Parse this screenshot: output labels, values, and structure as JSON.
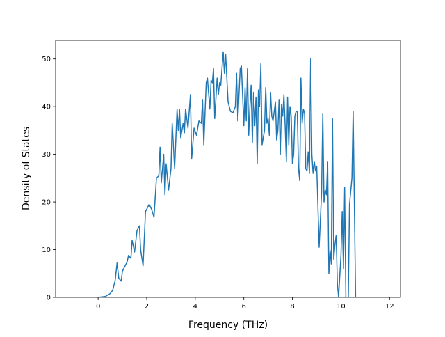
{
  "chart_data": {
    "type": "line",
    "xlabel": "Frequency (THz)",
    "ylabel": "Density of States",
    "xlim": [
      -1.75,
      12.45
    ],
    "ylim": [
      0,
      53.9
    ],
    "xticks": [
      0,
      2,
      4,
      6,
      8,
      10,
      12
    ],
    "yticks": [
      0,
      10,
      20,
      30,
      40,
      50
    ],
    "color": "#1f77b4",
    "x": [
      -1.1,
      0,
      0.3,
      0.5,
      0.6,
      0.7,
      0.78,
      0.85,
      0.95,
      1.0,
      1.1,
      1.2,
      1.25,
      1.35,
      1.4,
      1.5,
      1.6,
      1.7,
      1.75,
      1.85,
      1.95,
      2.1,
      2.2,
      2.3,
      2.4,
      2.5,
      2.55,
      2.6,
      2.7,
      2.75,
      2.8,
      2.9,
      3.0,
      3.05,
      3.15,
      3.25,
      3.3,
      3.35,
      3.4,
      3.5,
      3.55,
      3.6,
      3.7,
      3.8,
      3.85,
      3.95,
      4.05,
      4.15,
      4.25,
      4.3,
      4.35,
      4.45,
      4.5,
      4.6,
      4.65,
      4.7,
      4.75,
      4.8,
      4.9,
      4.95,
      5.0,
      5.05,
      5.15,
      5.2,
      5.25,
      5.35,
      5.45,
      5.55,
      5.65,
      5.7,
      5.75,
      5.85,
      5.9,
      6.0,
      6.05,
      6.1,
      6.15,
      6.2,
      6.25,
      6.3,
      6.35,
      6.4,
      6.45,
      6.5,
      6.55,
      6.6,
      6.65,
      6.7,
      6.75,
      6.85,
      6.9,
      6.95,
      7.0,
      7.05,
      7.1,
      7.15,
      7.2,
      7.3,
      7.35,
      7.4,
      7.45,
      7.5,
      7.55,
      7.6,
      7.65,
      7.7,
      7.75,
      7.8,
      7.85,
      7.9,
      7.95,
      8.0,
      8.05,
      8.1,
      8.15,
      8.2,
      8.25,
      8.3,
      8.35,
      8.4,
      8.45,
      8.5,
      8.55,
      8.6,
      8.65,
      8.7,
      8.75,
      8.8,
      8.85,
      8.9,
      8.95,
      9.0,
      9.1,
      9.2,
      9.25,
      9.3,
      9.35,
      9.4,
      9.45,
      9.5,
      9.55,
      9.6,
      9.65,
      9.7,
      9.75,
      9.8,
      9.85,
      9.9,
      10.0,
      10.05,
      10.1,
      10.15,
      10.2,
      10.3,
      10.35,
      10.45,
      10.5,
      10.6,
      11.9
    ],
    "values": [
      0,
      0,
      0.2,
      0.8,
      1.5,
      3.5,
      7.2,
      4,
      3.4,
      5.5,
      6.5,
      7.5,
      8.8,
      8.2,
      12,
      9.5,
      14,
      15,
      10,
      6.6,
      18,
      19.5,
      18.5,
      16.8,
      25,
      25.5,
      31.5,
      24,
      30,
      21.5,
      28,
      22.5,
      27,
      36.5,
      27,
      39.5,
      35,
      39.5,
      33.5,
      36.5,
      34.5,
      39.5,
      35.5,
      42.5,
      29,
      35.5,
      34,
      37,
      36.5,
      41.5,
      32,
      45,
      46,
      39.5,
      45.5,
      45,
      48,
      37.5,
      46,
      42.5,
      45,
      44.5,
      51.5,
      47,
      51,
      41,
      39,
      38.7,
      40,
      47,
      37,
      48,
      48.5,
      36,
      44,
      37,
      48,
      34,
      40,
      44.5,
      32.5,
      43,
      36,
      42,
      28,
      43.5,
      40,
      49,
      32,
      35,
      44,
      36.5,
      37.5,
      34,
      43,
      38,
      37,
      41,
      33,
      35,
      41.5,
      30,
      40.5,
      38,
      42.5,
      36,
      28.5,
      42,
      32,
      40,
      38,
      28,
      30,
      38,
      39,
      39,
      27,
      24.5,
      46,
      36.5,
      39.5,
      38.5,
      27,
      26.5,
      30.5,
      26,
      50,
      30,
      26,
      28.5,
      26.5,
      27.5,
      10.5,
      22,
      38.5,
      20,
      22.5,
      21.5,
      28.5,
      5,
      9.8,
      7,
      37.5,
      8,
      11,
      13,
      3,
      0,
      9,
      18,
      6,
      23,
      0,
      0,
      19.5,
      25,
      39,
      0,
      0
    ]
  }
}
